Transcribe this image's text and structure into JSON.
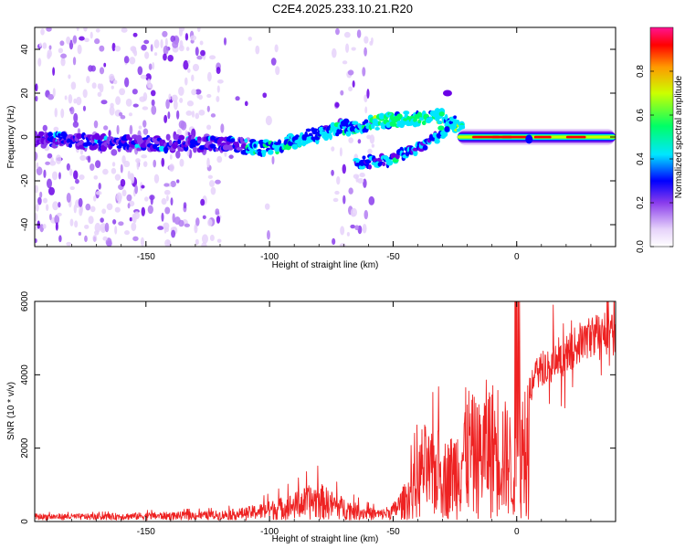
{
  "figure_title": "C2E4.2025.233.10.21.R20",
  "colors": {
    "snr_line": "#ee2222",
    "axis": "#000000",
    "colormap": [
      "#ffffff",
      "#e6d2fa",
      "#b37cf2",
      "#8a3cec",
      "#6a00e6",
      "#0000ff",
      "#00e6ff",
      "#00ff66",
      "#ccff00",
      "#ff9900",
      "#ff0000",
      "#ff1493"
    ]
  },
  "chart_data": [
    {
      "type": "heatmap",
      "title": "",
      "xlabel": "Height of straight line (km)",
      "ylabel": "Frequency (Hz)",
      "xlim": [
        -195,
        40
      ],
      "ylim": [
        -50,
        50
      ],
      "xticks": [
        -150,
        -100,
        -50,
        0
      ],
      "yticks": [
        -40,
        -20,
        0,
        20,
        40
      ],
      "colorbar": {
        "label": "Normalized spectral amplitude",
        "range": [
          0,
          1
        ],
        "ticks": [
          "0.0",
          "0.2",
          "0.4",
          "0.6",
          "0.8"
        ]
      },
      "ridge": {
        "description_points": [
          [
            -195,
            -1
          ],
          [
            -150,
            -3
          ],
          [
            -125,
            -3
          ],
          [
            -100,
            -5
          ],
          [
            -85,
            0
          ],
          [
            -70,
            4
          ],
          [
            -50,
            8
          ],
          [
            -30,
            9
          ],
          [
            -20,
            1
          ],
          [
            0,
            -1
          ],
          [
            40,
            -1
          ]
        ],
        "branch_points": [
          [
            -65,
            -12
          ],
          [
            -50,
            -10
          ],
          [
            -40,
            -5
          ],
          [
            -30,
            2
          ],
          [
            -25,
            8
          ]
        ]
      }
    },
    {
      "type": "line",
      "title": "",
      "xlabel": "Height of straight line (km)",
      "ylabel": "SNR (10 * v/v)",
      "xlim": [
        -195,
        40
      ],
      "ylim": [
        0,
        6000
      ],
      "xticks": [
        -150,
        -100,
        -50,
        0
      ],
      "yticks": [
        0,
        2000,
        4000,
        6000
      ],
      "envelope": {
        "x": [
          -195,
          -170,
          -150,
          -130,
          -120,
          -110,
          -100,
          -90,
          -85,
          -80,
          -75,
          -70,
          -65,
          -60,
          -55,
          -50,
          -45,
          -40,
          -38,
          -35,
          -32,
          -30,
          -28,
          -25,
          -22,
          -20,
          -18,
          -15,
          -12,
          -10,
          -8,
          -5,
          -3,
          -1,
          0,
          2,
          4,
          6,
          8,
          10,
          12,
          14,
          16,
          18,
          20,
          22,
          25,
          28,
          30,
          33,
          36,
          40
        ],
        "y": [
          150,
          150,
          180,
          200,
          220,
          300,
          450,
          650,
          800,
          900,
          700,
          550,
          400,
          300,
          250,
          400,
          900,
          1600,
          2400,
          2000,
          2200,
          2000,
          1900,
          2200,
          2800,
          3300,
          3000,
          2800,
          3400,
          3300,
          3400,
          2900,
          2700,
          2000,
          3600,
          3200,
          3900,
          3800,
          4100,
          4300,
          4400,
          4300,
          4400,
          4500,
          4700,
          4800,
          5000,
          5100,
          5200,
          5300,
          5300,
          5250
        ]
      }
    }
  ]
}
